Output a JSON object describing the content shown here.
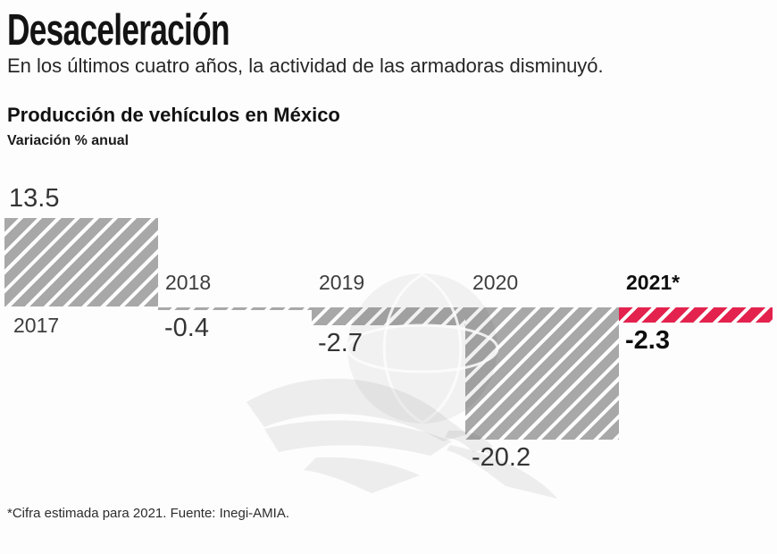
{
  "header": {
    "title": "Desaceleración",
    "subtitle": "En los últimos cuatro años, la actividad de las armadoras disminuyó."
  },
  "chart": {
    "title": "Producción de vehículos en México",
    "unit_label": "Variación % anual"
  },
  "chart_data": {
    "type": "bar",
    "title": "Producción de vehículos en México",
    "ylabel": "Variación % anual",
    "ylim": [
      -22,
      15
    ],
    "grid": false,
    "legend": "none",
    "pattern": "diagonal-hatch",
    "categories": [
      "2017",
      "2018",
      "2019",
      "2020",
      "2021*"
    ],
    "values": [
      13.5,
      -0.4,
      -2.7,
      -20.2,
      -2.3
    ],
    "value_labels": [
      "13.5",
      "-0.4",
      "-2.7",
      "-20.2",
      "-2.3"
    ],
    "highlight_category": "2021*",
    "colors": {
      "bar": "#a8a8a8",
      "highlight": "#e3234e"
    }
  },
  "watermark": "eagle-globe-logo",
  "footer": {
    "note": "*Cifra estimada para 2021. Fuente: Inegi-AMIA."
  }
}
